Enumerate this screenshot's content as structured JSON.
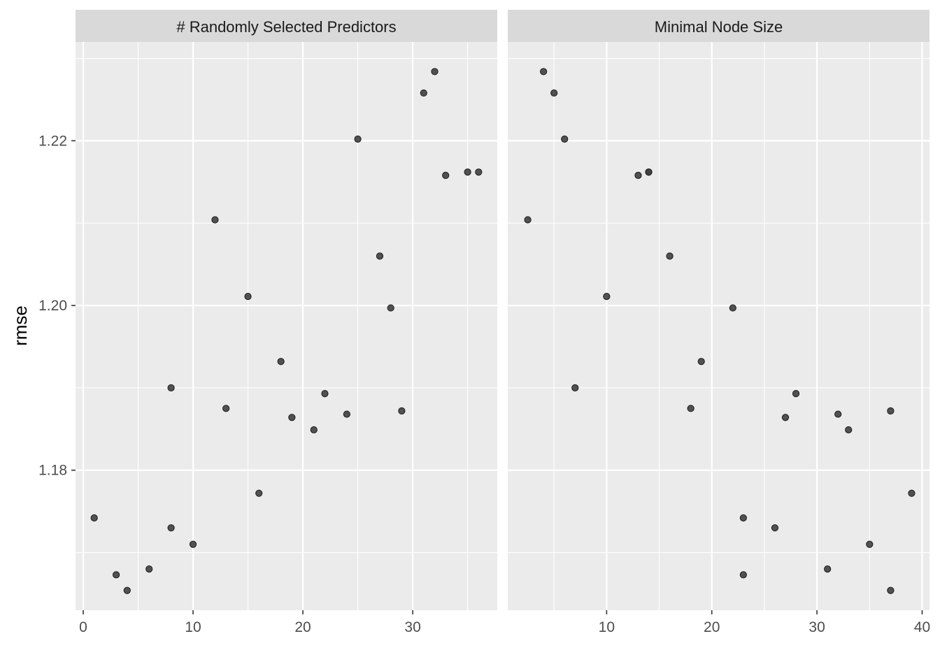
{
  "chart_data": {
    "type": "scatter",
    "ylabel": "rmse",
    "xlabel": "",
    "ylim": [
      1.163,
      1.232
    ],
    "y_ticks": [
      1.18,
      1.2,
      1.22
    ],
    "y_tick_labels": [
      "1.18",
      "1.20",
      "1.22"
    ],
    "grid": true,
    "colors": {
      "panel_bg": "#ebebeb",
      "strip_bg": "#d9d9d9",
      "grid": "#ffffff",
      "point_fill": "#404040",
      "point_stroke": "#1a1a1a"
    },
    "panels": [
      {
        "title": "# Randomly Selected Predictors",
        "xlim": [
          -0.7,
          37.7
        ],
        "x_ticks": [
          0,
          10,
          20,
          30
        ],
        "x_tick_labels": [
          "0",
          "10",
          "20",
          "30"
        ],
        "points": [
          {
            "x": 1,
            "y": 1.1742
          },
          {
            "x": 3,
            "y": 1.1673
          },
          {
            "x": 4,
            "y": 1.1654
          },
          {
            "x": 6,
            "y": 1.168
          },
          {
            "x": 8,
            "y": 1.19
          },
          {
            "x": 8,
            "y": 1.173
          },
          {
            "x": 10,
            "y": 1.171
          },
          {
            "x": 12,
            "y": 1.2104
          },
          {
            "x": 13,
            "y": 1.1875
          },
          {
            "x": 15,
            "y": 1.2011
          },
          {
            "x": 16,
            "y": 1.1772
          },
          {
            "x": 18,
            "y": 1.1932
          },
          {
            "x": 19,
            "y": 1.1864
          },
          {
            "x": 21,
            "y": 1.1849
          },
          {
            "x": 22,
            "y": 1.1893
          },
          {
            "x": 24,
            "y": 1.1868
          },
          {
            "x": 25,
            "y": 1.2202
          },
          {
            "x": 27,
            "y": 1.206
          },
          {
            "x": 28,
            "y": 1.1997
          },
          {
            "x": 29,
            "y": 1.1872
          },
          {
            "x": 31,
            "y": 1.2258
          },
          {
            "x": 32,
            "y": 1.2284
          },
          {
            "x": 33,
            "y": 1.2158
          },
          {
            "x": 35,
            "y": 1.2162
          },
          {
            "x": 36,
            "y": 1.2162
          }
        ]
      },
      {
        "title": "Minimal Node Size",
        "xlim": [
          0.6,
          40.7
        ],
        "x_ticks": [
          10,
          20,
          30,
          40
        ],
        "x_tick_labels": [
          "10",
          "20",
          "30",
          "40"
        ],
        "points": [
          {
            "x": 2.5,
            "y": 1.2104
          },
          {
            "x": 4,
            "y": 1.2284
          },
          {
            "x": 5,
            "y": 1.2258
          },
          {
            "x": 6,
            "y": 1.2202
          },
          {
            "x": 7,
            "y": 1.19
          },
          {
            "x": 10,
            "y": 1.2011
          },
          {
            "x": 13,
            "y": 1.2158
          },
          {
            "x": 14,
            "y": 1.2162
          },
          {
            "x": 14,
            "y": 1.2162
          },
          {
            "x": 16,
            "y": 1.206
          },
          {
            "x": 18,
            "y": 1.1875
          },
          {
            "x": 19,
            "y": 1.1932
          },
          {
            "x": 22,
            "y": 1.1997
          },
          {
            "x": 23,
            "y": 1.1742
          },
          {
            "x": 23,
            "y": 1.1673
          },
          {
            "x": 26,
            "y": 1.173
          },
          {
            "x": 27,
            "y": 1.1864
          },
          {
            "x": 28,
            "y": 1.1893
          },
          {
            "x": 31,
            "y": 1.168
          },
          {
            "x": 32,
            "y": 1.1868
          },
          {
            "x": 33,
            "y": 1.1849
          },
          {
            "x": 35,
            "y": 1.171
          },
          {
            "x": 37,
            "y": 1.1872
          },
          {
            "x": 37,
            "y": 1.1654
          },
          {
            "x": 39,
            "y": 1.1772
          }
        ]
      }
    ]
  }
}
